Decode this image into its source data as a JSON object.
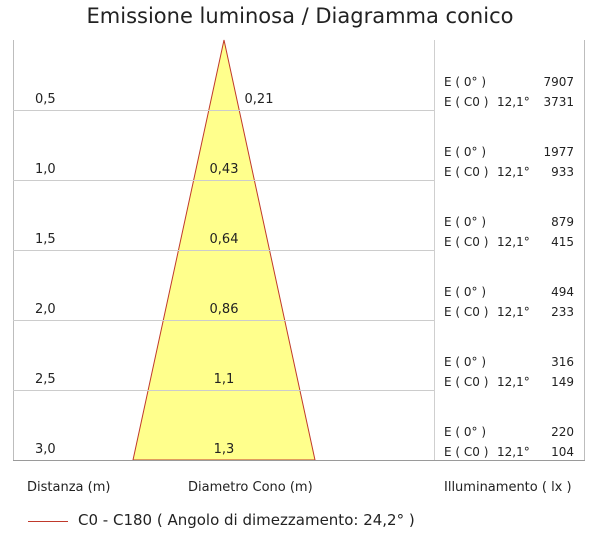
{
  "title": "Emissione luminosa  / Diagramma conico",
  "colors": {
    "cone_fill": "#ffff8c",
    "cone_stroke": "#c0392b",
    "grid": "#cccccc"
  },
  "rows": [
    {
      "distance": "0,5",
      "diameter": "0,21",
      "e0_label": "E ( 0° )",
      "e0_value": "7907",
      "ec0_label": "E ( C0 )",
      "angle": "12,1°",
      "ec0_value": "3731"
    },
    {
      "distance": "1,0",
      "diameter": "0,43",
      "e0_label": "E ( 0° )",
      "e0_value": "1977",
      "ec0_label": "E ( C0 )",
      "angle": "12,1°",
      "ec0_value": "933"
    },
    {
      "distance": "1,5",
      "diameter": "0,64",
      "e0_label": "E ( 0° )",
      "e0_value": "879",
      "ec0_label": "E ( C0 )",
      "angle": "12,1°",
      "ec0_value": "415"
    },
    {
      "distance": "2,0",
      "diameter": "0,86",
      "e0_label": "E ( 0° )",
      "e0_value": "494",
      "ec0_label": "E ( C0 )",
      "angle": "12,1°",
      "ec0_value": "233"
    },
    {
      "distance": "2,5",
      "diameter": "1,1",
      "e0_label": "E ( 0° )",
      "e0_value": "316",
      "ec0_label": "E ( C0 )",
      "angle": "12,1°",
      "ec0_value": "149"
    },
    {
      "distance": "3,0",
      "diameter": "1,3",
      "e0_label": "E ( 0° )",
      "e0_value": "220",
      "ec0_label": "E ( C0 )",
      "angle": "12,1°",
      "ec0_value": "104"
    }
  ],
  "footer": {
    "distance_label": "Distanza (m)",
    "diameter_label": "Diametro Cono (m)",
    "illuminance_label": "Illuminamento ( lx )"
  },
  "legend": {
    "text": "C0 - C180  ( Angolo di dimezzamento: 24,2° )"
  }
}
